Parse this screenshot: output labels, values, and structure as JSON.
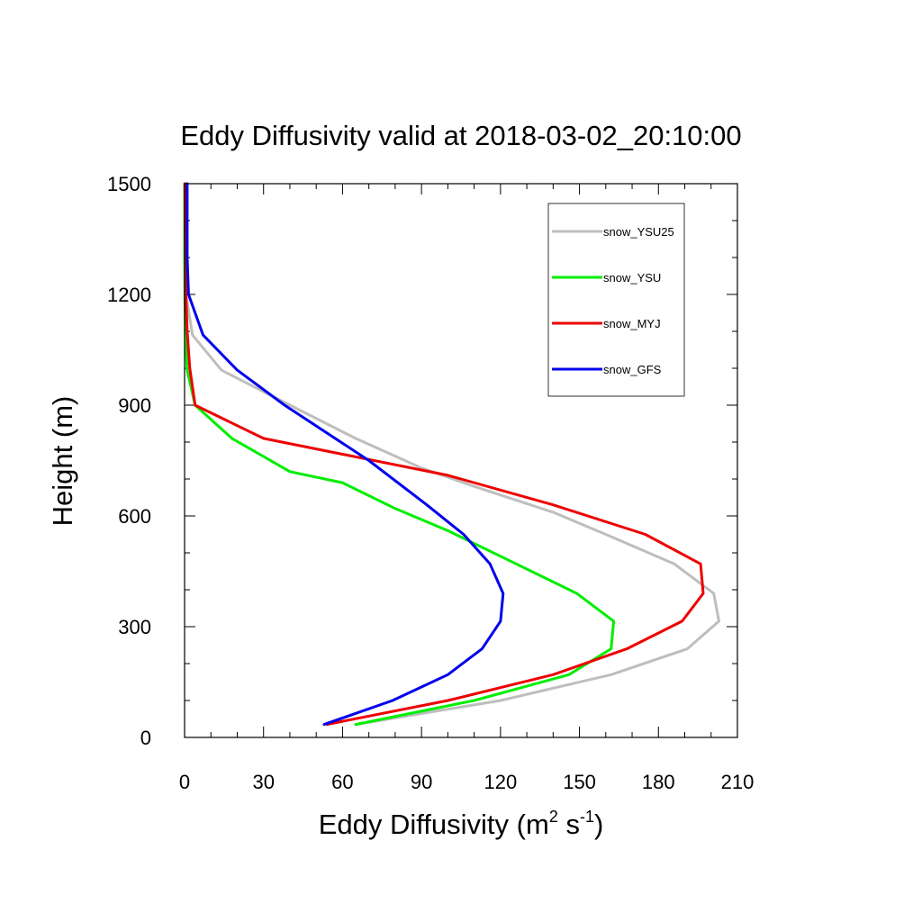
{
  "chart_data": {
    "type": "line",
    "title": "Eddy Diffusivity valid at 2018-03-02_20:10:00",
    "xlabel_main": "Eddy Diffusivity (m",
    "xlabel_sup1": "2",
    "xlabel_mid": " s",
    "xlabel_sup2": "-1",
    "xlabel_end": ")",
    "ylabel": "Height (m)",
    "xlim": [
      0,
      210
    ],
    "ylim": [
      0,
      1500
    ],
    "xticks": [
      0,
      30,
      60,
      90,
      120,
      150,
      180,
      210
    ],
    "yticks": [
      0,
      300,
      600,
      900,
      1200,
      1500
    ],
    "xtick_labels": [
      "0",
      "30",
      "60",
      "90",
      "120",
      "150",
      "180",
      "210"
    ],
    "ytick_labels": [
      "0",
      "300",
      "600",
      "900",
      "1200",
      "1500"
    ],
    "x_minor_step": 10,
    "y_minor_step": 100,
    "legend_position": "top-right",
    "series": [
      {
        "name": "snow_YSU25",
        "color": "#bebebe",
        "points": [
          [
            65,
            35
          ],
          [
            120,
            100
          ],
          [
            162,
            170
          ],
          [
            191,
            240
          ],
          [
            203,
            315
          ],
          [
            201,
            390
          ],
          [
            186,
            470
          ],
          [
            160,
            550
          ],
          [
            140,
            610
          ],
          [
            110,
            680
          ],
          [
            90,
            730
          ],
          [
            65,
            810
          ],
          [
            40,
            900
          ],
          [
            14,
            995
          ],
          [
            3,
            1090
          ],
          [
            0.5,
            1200
          ],
          [
            0.3,
            1300
          ],
          [
            0.2,
            1400
          ],
          [
            0.1,
            1500
          ]
        ]
      },
      {
        "name": "snow_YSU",
        "color": "#00ee00",
        "points": [
          [
            65,
            35
          ],
          [
            110,
            100
          ],
          [
            146,
            170
          ],
          [
            162,
            240
          ],
          [
            163,
            315
          ],
          [
            149,
            390
          ],
          [
            126,
            470
          ],
          [
            100,
            560
          ],
          [
            80,
            620
          ],
          [
            60,
            690
          ],
          [
            40,
            720
          ],
          [
            18,
            810
          ],
          [
            4,
            900
          ],
          [
            1,
            995
          ],
          [
            0.3,
            1090
          ],
          [
            0.1,
            1200
          ],
          [
            0.05,
            1300
          ],
          [
            0.05,
            1400
          ],
          [
            0.05,
            1500
          ]
        ]
      },
      {
        "name": "snow_MYJ",
        "color": "#ee0000",
        "points": [
          [
            54,
            35
          ],
          [
            100,
            100
          ],
          [
            140,
            170
          ],
          [
            168,
            240
          ],
          [
            189,
            315
          ],
          [
            197,
            390
          ],
          [
            196,
            470
          ],
          [
            175,
            550
          ],
          [
            140,
            630
          ],
          [
            100,
            710
          ],
          [
            30,
            810
          ],
          [
            4,
            900
          ],
          [
            2,
            1000
          ],
          [
            1,
            1100
          ],
          [
            0.5,
            1200
          ],
          [
            0.3,
            1300
          ],
          [
            0.2,
            1400
          ],
          [
            0.1,
            1500
          ]
        ]
      },
      {
        "name": "snow_GFS",
        "color": "#0000ee",
        "points": [
          [
            53,
            35
          ],
          [
            79,
            100
          ],
          [
            100,
            170
          ],
          [
            113,
            240
          ],
          [
            120,
            315
          ],
          [
            121,
            390
          ],
          [
            116,
            470
          ],
          [
            106,
            550
          ],
          [
            92,
            630
          ],
          [
            70,
            750
          ],
          [
            38,
            900
          ],
          [
            20,
            995
          ],
          [
            7,
            1090
          ],
          [
            1.5,
            1200
          ],
          [
            1,
            1300
          ],
          [
            1,
            1400
          ],
          [
            1,
            1500
          ]
        ]
      }
    ]
  }
}
